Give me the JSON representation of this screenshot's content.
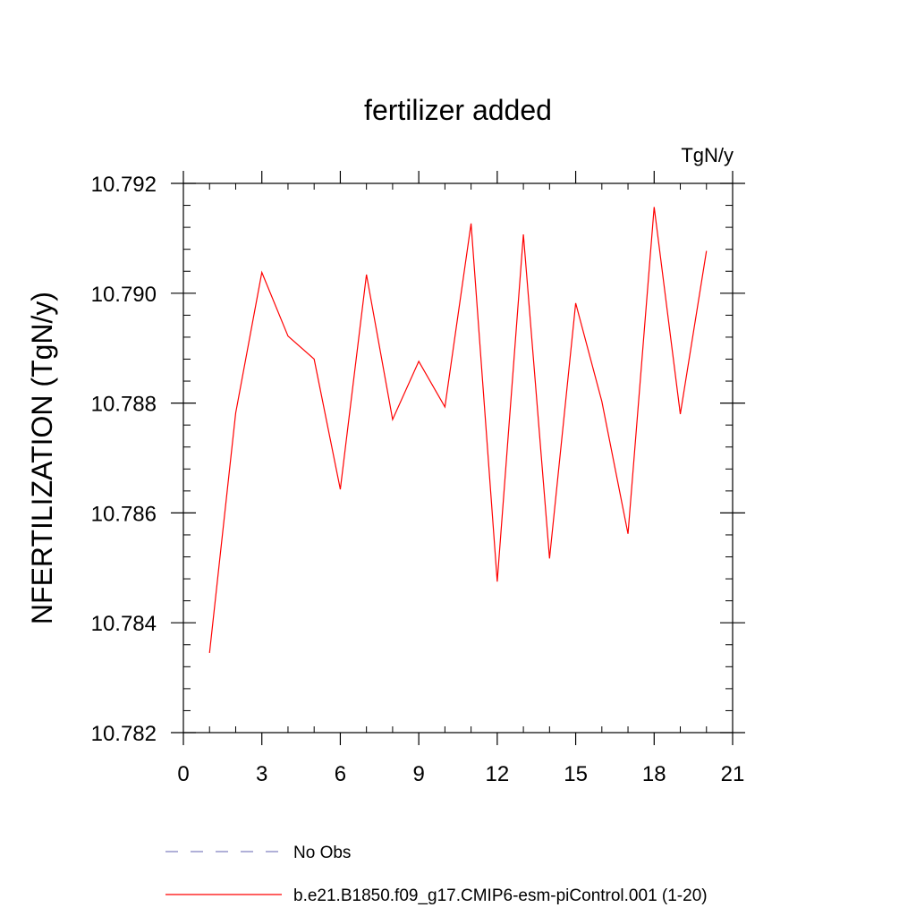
{
  "chart_data": {
    "type": "line",
    "title": "fertilizer added",
    "units_label": "TgN/y",
    "ylabel": "NFERTILIZATION  (TgN/y)",
    "xlabel": "",
    "xlim": [
      0,
      21
    ],
    "ylim": [
      10.782,
      10.792
    ],
    "x_ticks": [
      0,
      3,
      6,
      9,
      12,
      15,
      18,
      21
    ],
    "x_tick_labels": [
      "0",
      "3",
      "6",
      "9",
      "12",
      "15",
      "18",
      "21"
    ],
    "y_ticks": [
      10.782,
      10.784,
      10.786,
      10.788,
      10.79,
      10.792
    ],
    "y_tick_labels": [
      "10.782",
      "10.784",
      "10.786",
      "10.788",
      "10.790",
      "10.792"
    ],
    "grid": false,
    "legend_position": "bottom",
    "series": [
      {
        "name": "No Obs",
        "color": "#8080c0",
        "dash": "dashed",
        "x": [],
        "y": []
      },
      {
        "name": "b.e21.B1850.f09_g17.CMIP6-esm-piControl.001 (1-20)",
        "color": "#ff0000",
        "dash": "solid",
        "x": [
          1,
          2,
          3,
          4,
          5,
          6,
          7,
          8,
          9,
          10,
          11,
          12,
          13,
          14,
          15,
          16,
          17,
          18,
          19,
          20
        ],
        "y": [
          10.78345,
          10.78782,
          10.79038,
          10.78922,
          10.7888,
          10.78643,
          10.79034,
          10.7877,
          10.78876,
          10.78793,
          10.79127,
          10.78475,
          10.79107,
          10.78517,
          10.78982,
          10.78803,
          10.78562,
          10.79157,
          10.7878,
          10.79077
        ]
      }
    ]
  }
}
